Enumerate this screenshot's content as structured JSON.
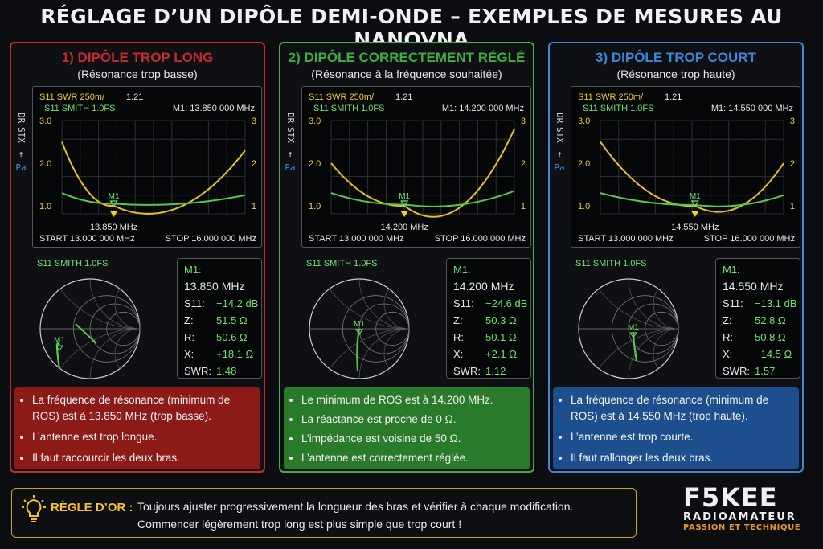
{
  "title": "RÉGLAGE D’UN DIPÔLE DEMI-ONDE – EXEMPLES DE MESURES AU NANOVNA",
  "panels": [
    {
      "heading": "1) DIPÔLE TROP LONG",
      "subtitle": "(Résonance trop basse)",
      "color": "#c62b2b",
      "note_bg": "#8c1b17",
      "trace1_label": "S11 SWR 250m/",
      "trace1_value": "1.21",
      "trace2_label": "S11 SMITH 1.0FS",
      "marker_readout": "M1: 13.850 000 MHz",
      "marker_freq_label": "13.850 MHz",
      "start": "START 13.000 000 MHz",
      "stop": "STOP 16.000 000 MHz",
      "smith_label": "S11 SMITH 1.0FS",
      "marker_name": "M1",
      "m_label": "M1:",
      "m_freq": "13.850 MHz",
      "s11_label": "S11:",
      "s11": "−14.2 dB",
      "z_label": "Z:",
      "z": "51.5 Ω",
      "r_label": "R:",
      "r": "50.6 Ω",
      "x_label": "X:",
      "x": "+18.1 Ω",
      "swr_label": "SWR:",
      "swr": "1.48",
      "notes": [
        "La fréquence de résonance (minimum de ROS) est à 13.850 MHz (trop basse).",
        "L’antenne est trop longue.",
        "Il faut raccourcir les deux bras."
      ]
    },
    {
      "heading": "2) DIPÔLE CORRECTEMENT RÉGLÉ",
      "subtitle": "(Résonance à la fréquence souhaitée)",
      "color": "#3fae3f",
      "note_bg": "#2a7a2c",
      "trace1_label": "S11 SWR 250m/",
      "trace1_value": "1.21",
      "trace2_label": "S11 SMITH 1.0FS",
      "marker_readout": "M1: 14.200 000 MHz",
      "marker_freq_label": "14.200 MHz",
      "start": "START 13.000 000 MHz",
      "stop": "STOP 16.000 000 MHz",
      "smith_label": "S11 SMITH 1.0FS",
      "marker_name": "M1",
      "m_label": "M1:",
      "m_freq": "14.200 MHz",
      "s11_label": "S11:",
      "s11": "−24.6 dB",
      "z_label": "Z:",
      "z": "50.3 Ω",
      "r_label": "R:",
      "r": "50.1 Ω",
      "x_label": "X:",
      "x": "+2.1 Ω",
      "swr_label": "SWR:",
      "swr": "1.12",
      "notes": [
        "Le minimum de ROS est à 14.200 MHz.",
        "La réactance est proche de 0 Ω.",
        "L’impédance est voisine de 50 Ω.",
        "L’antenne est correctement réglée."
      ]
    },
    {
      "heading": "3) DIPÔLE TROP COURT",
      "subtitle": "(Résonance trop haute)",
      "color": "#3b86d6",
      "note_bg": "#1d4f8f",
      "trace1_label": "S11 SWR 250m/",
      "trace1_value": "1.21",
      "trace2_label": "S11 SMITH 1.0FS",
      "marker_readout": "M1: 14.550 000 MHz",
      "marker_freq_label": "14.550 MHz",
      "start": "START 13.000 000 MHz",
      "stop": "STOP 16.000 000 MHz",
      "smith_label": "S11 SMITH 1.0FS",
      "marker_name": "M1",
      "m_label": "M1:",
      "m_freq": "14.550 MHz",
      "s11_label": "S11:",
      "s11": "−13.1 dB",
      "z_label": "Z:",
      "z": "52.8 Ω",
      "r_label": "R:",
      "r": "50.8 Ω",
      "x_label": "X:",
      "x": "−14.5 Ω",
      "swr_label": "SWR:",
      "swr": "1.57",
      "notes": [
        "La fréquence de résonance (minimum de ROS) est à 14.550 MHz (trop haute).",
        "L’antenne est trop courte.",
        "Il faut rallonger les deux bras."
      ]
    }
  ],
  "axis": {
    "left_ticks": [
      "3.0",
      "2.0",
      "1.0"
    ],
    "right_ticks": [
      "3",
      "2",
      "1"
    ],
    "side_label": [
      "DR",
      "STX",
      "Pa"
    ]
  },
  "gold_rule": {
    "label": "RÈGLE D’OR :",
    "line1": "Toujours ajuster progressivement la longueur des bras et vérifier à chaque modification.",
    "line2": "Commencer légèrement trop long est plus simple que trop court !"
  },
  "brand": {
    "name": "F5KEE",
    "line1": "RADIOAMATEUR",
    "line2": "PASSION ET TECHNIQUE"
  },
  "chart_data": [
    {
      "type": "line",
      "x_unit": "MHz",
      "xlim": [
        13.0,
        16.0
      ],
      "ylim": [
        1.0,
        3.0
      ],
      "marker_x": 13.85,
      "series": [
        {
          "values": [
            [
              13.0,
              2.5
            ],
            [
              13.85,
              1.0
            ],
            [
              16.0,
              2.3
            ]
          ]
        },
        {
          "values": [
            [
              13.0,
              1.3
            ],
            [
              13.85,
              1.05
            ],
            [
              16.0,
              1.25
            ]
          ]
        }
      ]
    },
    {
      "type": "line",
      "x_unit": "MHz",
      "xlim": [
        13.0,
        16.0
      ],
      "ylim": [
        1.0,
        3.0
      ],
      "marker_x": 14.2,
      "series": [
        {
          "values": [
            [
              13.0,
              2.0
            ],
            [
              14.2,
              1.0
            ],
            [
              16.0,
              2.8
            ]
          ]
        },
        {
          "values": [
            [
              13.0,
              1.3
            ],
            [
              14.2,
              1.03
            ],
            [
              16.0,
              1.35
            ]
          ]
        }
      ]
    },
    {
      "type": "line",
      "x_unit": "MHz",
      "xlim": [
        13.0,
        16.0
      ],
      "ylim": [
        1.0,
        3.0
      ],
      "marker_x": 14.55,
      "series": [
        {
          "values": [
            [
              13.0,
              2.5
            ],
            [
              14.55,
              1.0
            ],
            [
              16.0,
              2.0
            ]
          ]
        },
        {
          "values": [
            [
              13.0,
              1.3
            ],
            [
              14.55,
              1.02
            ],
            [
              16.0,
              1.25
            ]
          ]
        }
      ]
    }
  ]
}
